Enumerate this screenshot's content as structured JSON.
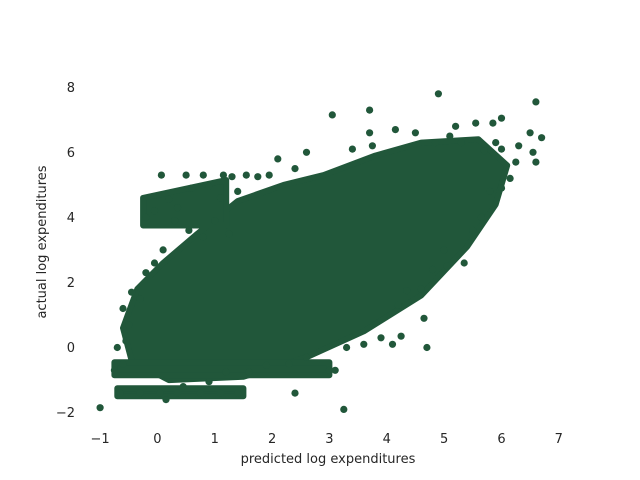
{
  "chart_data": {
    "type": "scatter",
    "title": "",
    "xlabel": "predicted log expenditures",
    "ylabel": "actual log expenditures",
    "xlim": [
      -1.35,
      7.3
    ],
    "ylim": [
      -2.35,
      8.9
    ],
    "xticks": [
      -1,
      0,
      1,
      2,
      3,
      4,
      5,
      6,
      7
    ],
    "xtick_labels": [
      "−1",
      "0",
      "1",
      "2",
      "3",
      "4",
      "5",
      "6",
      "7"
    ],
    "yticks": [
      -2,
      0,
      2,
      4,
      6,
      8
    ],
    "ytick_labels": [
      "−2",
      "0",
      "2",
      "4",
      "6",
      "8"
    ],
    "grid": false,
    "legend": "none",
    "series": [
      {
        "color": "#21573a",
        "points": [
          [
            -1.0,
            -1.85
          ],
          [
            0.07,
            5.3
          ],
          [
            0.5,
            5.3
          ],
          [
            0.8,
            5.3
          ],
          [
            1.15,
            5.3
          ],
          [
            1.3,
            5.25
          ],
          [
            1.55,
            5.3
          ],
          [
            1.75,
            5.25
          ],
          [
            1.95,
            5.3
          ],
          [
            -0.2,
            4.0
          ],
          [
            -0.05,
            4.2
          ],
          [
            0.2,
            4.55
          ],
          [
            0.35,
            4.3
          ],
          [
            0.6,
            4.9
          ],
          [
            0.9,
            4.95
          ],
          [
            1.1,
            4.6
          ],
          [
            1.4,
            4.8
          ],
          [
            0.3,
            3.9
          ],
          [
            0.55,
            3.6
          ],
          [
            0.8,
            3.4
          ],
          [
            1.0,
            3.9
          ],
          [
            1.25,
            3.5
          ],
          [
            -0.45,
            1.7
          ],
          [
            -0.3,
            1.5
          ],
          [
            -0.2,
            2.3
          ],
          [
            -0.05,
            2.6
          ],
          [
            0.1,
            3.0
          ],
          [
            -0.6,
            1.2
          ],
          [
            -0.5,
            0.7
          ],
          [
            -0.55,
            0.2
          ],
          [
            -0.7,
            0.0
          ],
          [
            -0.75,
            -0.7
          ],
          [
            -0.6,
            -0.5
          ],
          [
            -0.65,
            -1.4
          ],
          [
            -0.3,
            -1.4
          ],
          [
            0.05,
            -1.4
          ],
          [
            0.35,
            -1.4
          ],
          [
            0.75,
            -1.4
          ],
          [
            1.1,
            -1.4
          ],
          [
            1.4,
            -1.4
          ],
          [
            0.15,
            -1.6
          ],
          [
            0.45,
            -1.2
          ],
          [
            0.9,
            -1.05
          ],
          [
            1.2,
            -0.75
          ],
          [
            1.6,
            -0.75
          ],
          [
            1.9,
            -0.55
          ],
          [
            2.3,
            -0.5
          ],
          [
            2.6,
            -0.3
          ],
          [
            3.0,
            -0.7
          ],
          [
            3.1,
            -0.7
          ],
          [
            2.4,
            -1.4
          ],
          [
            3.25,
            -1.9
          ],
          [
            3.3,
            0.0
          ],
          [
            3.6,
            0.1
          ],
          [
            3.9,
            0.3
          ],
          [
            4.1,
            0.1
          ],
          [
            4.25,
            0.35
          ],
          [
            4.7,
            0.0
          ],
          [
            4.65,
            0.9
          ],
          [
            4.2,
            1.3
          ],
          [
            4.35,
            1.75
          ],
          [
            4.6,
            1.8
          ],
          [
            4.8,
            2.4
          ],
          [
            5.05,
            2.5
          ],
          [
            5.0,
            3.0
          ],
          [
            5.35,
            2.6
          ],
          [
            5.5,
            3.6
          ],
          [
            5.65,
            4.0
          ],
          [
            5.8,
            4.8
          ],
          [
            6.0,
            4.9
          ],
          [
            6.15,
            5.2
          ],
          [
            6.25,
            5.7
          ],
          [
            6.3,
            6.2
          ],
          [
            6.55,
            6.0
          ],
          [
            6.6,
            5.7
          ],
          [
            6.7,
            6.45
          ],
          [
            6.5,
            6.6
          ],
          [
            6.6,
            7.55
          ],
          [
            4.9,
            7.8
          ],
          [
            3.7,
            7.3
          ],
          [
            3.05,
            7.15
          ],
          [
            3.7,
            6.6
          ],
          [
            4.15,
            6.7
          ],
          [
            5.2,
            6.8
          ],
          [
            5.55,
            6.9
          ],
          [
            5.85,
            6.9
          ],
          [
            6.0,
            7.05
          ],
          [
            3.4,
            6.1
          ],
          [
            3.75,
            6.2
          ],
          [
            2.6,
            6.0
          ],
          [
            2.1,
            5.8
          ],
          [
            2.4,
            5.5
          ],
          [
            4.5,
            6.6
          ],
          [
            4.85,
            6.3
          ],
          [
            5.1,
            6.5
          ],
          [
            5.3,
            6.3
          ],
          [
            5.9,
            6.3
          ],
          [
            6.0,
            6.1
          ],
          [
            5.7,
            6.05
          ]
        ]
      }
    ]
  }
}
